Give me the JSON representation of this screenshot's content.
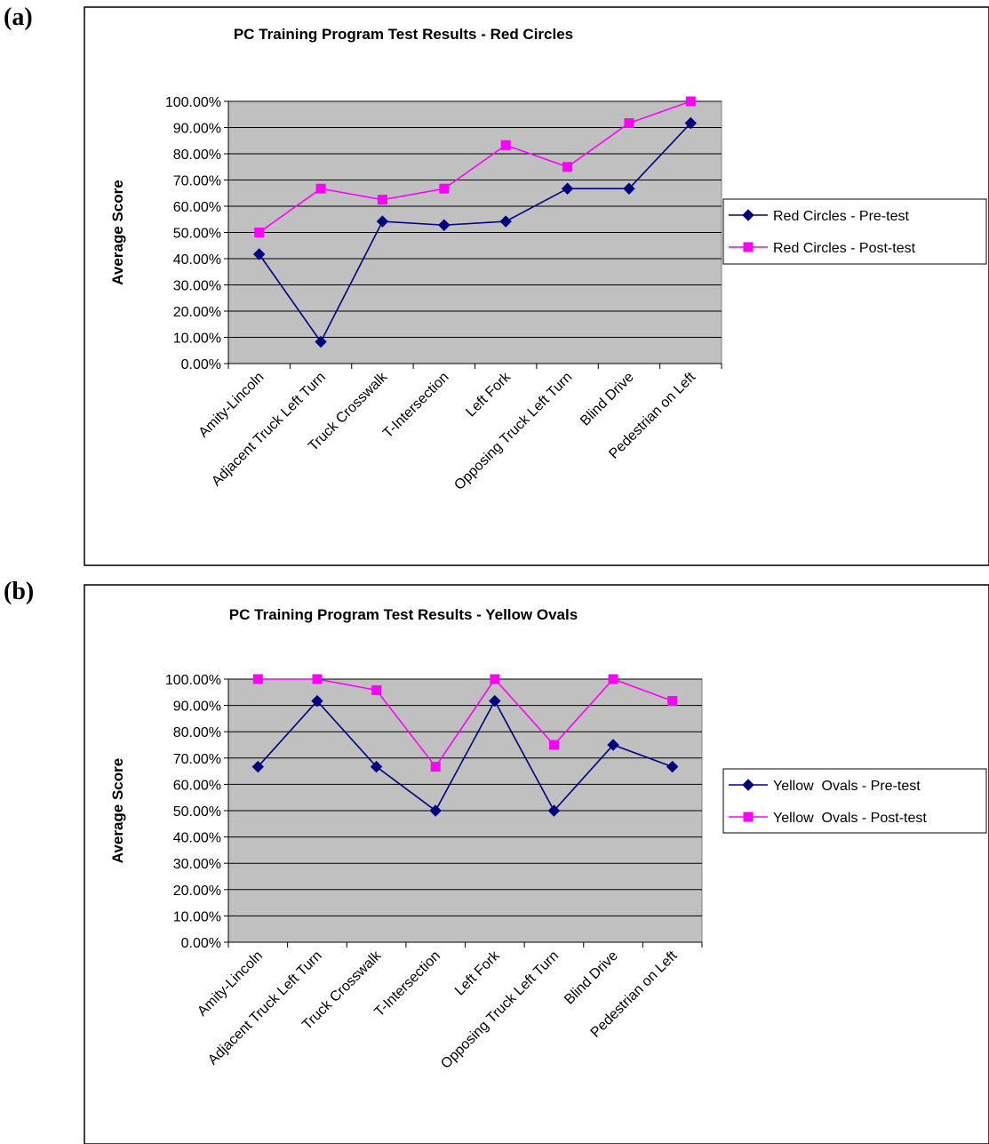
{
  "panels": [
    {
      "letter": "(a)"
    },
    {
      "letter": "(b)"
    }
  ],
  "chart_data": [
    {
      "type": "line",
      "title": "PC Training Program Test Results - Red Circles",
      "ylabel": "Average Score",
      "xlabel": "",
      "ylim": [
        0,
        100
      ],
      "yticks": [
        "0.00%",
        "10.00%",
        "20.00%",
        "30.00%",
        "40.00%",
        "50.00%",
        "60.00%",
        "70.00%",
        "80.00%",
        "90.00%",
        "100.00%"
      ],
      "grid": true,
      "legend_position": "right",
      "categories": [
        "Amity-Lincoln",
        "Adjacent Truck Left Turn",
        "Truck Crosswalk",
        "T-Intersection",
        "Left Fork",
        "Opposing Truck Left Turn",
        "Blind Drive",
        "Pedestrian on Left"
      ],
      "series": [
        {
          "name": "Red Circles - Pre-test",
          "color": "#000080",
          "marker": "diamond",
          "values": [
            41.7,
            8.3,
            54.2,
            52.8,
            54.2,
            66.7,
            66.7,
            91.7
          ]
        },
        {
          "name": "Red Circles - Post-test",
          "color": "#ff00ff",
          "marker": "square",
          "values": [
            50.0,
            66.7,
            62.5,
            66.7,
            83.3,
            75.0,
            91.7,
            100.0
          ]
        }
      ]
    },
    {
      "type": "line",
      "title": "PC Training Program Test Results - Yellow Ovals",
      "ylabel": "Average Score",
      "xlabel": "",
      "ylim": [
        0,
        100
      ],
      "yticks": [
        "0.00%",
        "10.00%",
        "20.00%",
        "30.00%",
        "40.00%",
        "50.00%",
        "60.00%",
        "70.00%",
        "80.00%",
        "90.00%",
        "100.00%"
      ],
      "grid": true,
      "legend_position": "right",
      "categories": [
        "Amity-Lincoln",
        "Adjacent Truck Left Turn",
        "Truck Crosswalk",
        "T-Intersection",
        "Left Fork",
        "Opposing Truck Left Turn",
        "Blind Drive",
        "Pedestrian on Left"
      ],
      "series": [
        {
          "name": "Yellow  Ovals - Pre-test",
          "color": "#000080",
          "marker": "diamond",
          "values": [
            66.7,
            91.7,
            66.7,
            50.0,
            91.7,
            50.0,
            75.0,
            66.7
          ]
        },
        {
          "name": "Yellow  Ovals - Post-test",
          "color": "#ff00ff",
          "marker": "square",
          "values": [
            100.0,
            100.0,
            95.8,
            66.7,
            100.0,
            75.0,
            100.0,
            91.7
          ]
        }
      ]
    }
  ]
}
